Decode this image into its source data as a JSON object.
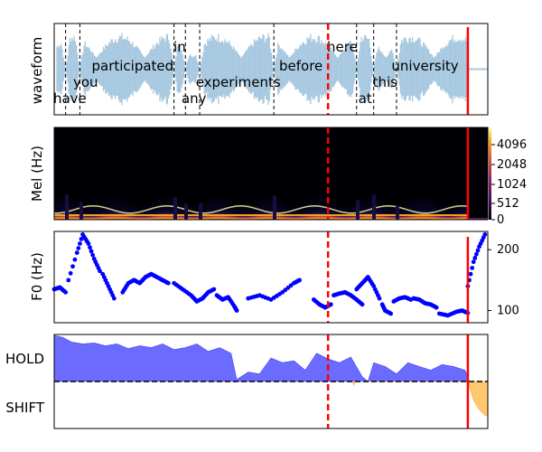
{
  "chart_data": [
    {
      "type": "area",
      "ylabel": "waveform",
      "words": [
        {
          "text": "have",
          "start": 0.02,
          "end": 0.09,
          "row": 3
        },
        {
          "text": "you",
          "start": 0.09,
          "end": 0.13,
          "row": 2
        },
        {
          "text": "participated",
          "start": 0.13,
          "end": 0.42,
          "row": 1
        },
        {
          "text": "in",
          "start": 0.42,
          "end": 0.46,
          "row": 0
        },
        {
          "text": "any",
          "start": 0.46,
          "end": 0.52,
          "row": 3
        },
        {
          "text": "experiments",
          "start": 0.52,
          "end": 0.77,
          "row": 2
        },
        {
          "text": "before",
          "start": 0.77,
          "end": 0.96,
          "row": 1
        },
        {
          "text": "here",
          "start": 0.96,
          "end": 1.06,
          "row": 0
        },
        {
          "text": "at",
          "start": 1.06,
          "end": 1.12,
          "row": 3
        },
        {
          "text": "this",
          "start": 1.12,
          "end": 1.2,
          "row": 2
        },
        {
          "text": "university",
          "start": 1.2,
          "end": 1.4,
          "row": 1
        }
      ],
      "word_boundaries": [
        0.04,
        0.09,
        0.42,
        0.46,
        0.51,
        0.77,
        1.06,
        1.12,
        1.2
      ],
      "speech_end": 1.45,
      "duration": 1.52,
      "dashed_marker": 0.96,
      "solid_marker": 1.45
    },
    {
      "type": "heatmap",
      "ylabel": "Mel (Hz)",
      "yticks": [
        "0",
        "512",
        "1024",
        "2048",
        "4096"
      ],
      "speech_end": 1.45,
      "duration": 1.52,
      "dashed_marker": 0.96,
      "solid_marker": 1.45
    },
    {
      "type": "scatter",
      "ylabel": "F0 (Hz)",
      "yticks": [
        100,
        200
      ],
      "ylim": [
        80,
        230
      ],
      "duration": 1.52,
      "dashed_marker": 0.96,
      "solid_marker": 1.45,
      "segments": [
        {
          "x": [
            0.0,
            0.02,
            0.04
          ],
          "y": [
            135,
            138,
            130
          ]
        },
        {
          "x": [
            0.05,
            0.08,
            0.1,
            0.12,
            0.14,
            0.16
          ],
          "y": [
            150,
            195,
            225,
            210,
            185,
            165
          ]
        },
        {
          "x": [
            0.17,
            0.19,
            0.21
          ],
          "y": [
            160,
            140,
            120
          ]
        },
        {
          "x": [
            0.24,
            0.26,
            0.28
          ],
          "y": [
            130,
            145,
            150
          ]
        },
        {
          "x": [
            0.28,
            0.3,
            0.32,
            0.34,
            0.36,
            0.38,
            0.4
          ],
          "y": [
            150,
            145,
            155,
            160,
            155,
            150,
            145
          ]
        },
        {
          "x": [
            0.42,
            0.45,
            0.48,
            0.5,
            0.52,
            0.54,
            0.56
          ],
          "y": [
            145,
            135,
            125,
            115,
            120,
            130,
            135
          ]
        },
        {
          "x": [
            0.57,
            0.59,
            0.61,
            0.63,
            0.64
          ],
          "y": [
            125,
            118,
            122,
            108,
            100
          ]
        },
        {
          "x": [
            0.68,
            0.72,
            0.76,
            0.8,
            0.84,
            0.86
          ],
          "y": [
            120,
            125,
            118,
            130,
            145,
            150
          ]
        },
        {
          "x": [
            0.91,
            0.93,
            0.95,
            0.97
          ],
          "y": [
            118,
            110,
            105,
            110
          ]
        },
        {
          "x": [
            0.98,
            1.0,
            1.02,
            1.04,
            1.06,
            1.08
          ],
          "y": [
            125,
            128,
            130,
            125,
            118,
            110
          ]
        },
        {
          "x": [
            1.06,
            1.08,
            1.1,
            1.12,
            1.14
          ],
          "y": [
            135,
            145,
            155,
            140,
            120
          ]
        },
        {
          "x": [
            1.15,
            1.16,
            1.18
          ],
          "y": [
            110,
            100,
            95
          ]
        },
        {
          "x": [
            1.19,
            1.21,
            1.23,
            1.25
          ],
          "y": [
            115,
            120,
            122,
            118
          ]
        },
        {
          "x": [
            1.26,
            1.28,
            1.3,
            1.32,
            1.34
          ],
          "y": [
            120,
            118,
            112,
            110,
            105
          ]
        },
        {
          "x": [
            1.35,
            1.38,
            1.41,
            1.43,
            1.45
          ],
          "y": [
            95,
            92,
            98,
            100,
            96
          ]
        },
        {
          "x": [
            1.45,
            1.47,
            1.49,
            1.51
          ],
          "y": [
            140,
            180,
            205,
            225
          ]
        }
      ]
    },
    {
      "type": "area",
      "categories": [
        "HOLD",
        "SHIFT"
      ],
      "duration": 1.52,
      "dashed_marker": 0.96,
      "solid_marker": 1.45,
      "threshold": 0.5,
      "hold_series": {
        "x": [
          0.0,
          0.03,
          0.06,
          0.1,
          0.14,
          0.18,
          0.22,
          0.26,
          0.3,
          0.34,
          0.38,
          0.42,
          0.46,
          0.5,
          0.54,
          0.58,
          0.62,
          0.64,
          0.68,
          0.72,
          0.76,
          0.8,
          0.84,
          0.88,
          0.92,
          0.96,
          1.0,
          1.04,
          1.08,
          1.1,
          1.12,
          1.16,
          1.2,
          1.24,
          1.28,
          1.32,
          1.36,
          1.4,
          1.44,
          1.45
        ],
        "y": [
          0.99,
          0.97,
          0.92,
          0.9,
          0.91,
          0.88,
          0.9,
          0.85,
          0.88,
          0.86,
          0.9,
          0.84,
          0.86,
          0.9,
          0.82,
          0.86,
          0.8,
          0.52,
          0.6,
          0.58,
          0.75,
          0.7,
          0.72,
          0.62,
          0.8,
          0.74,
          0.7,
          0.76,
          0.55,
          0.5,
          0.7,
          0.66,
          0.58,
          0.7,
          0.66,
          0.62,
          0.68,
          0.66,
          0.62,
          0.55
        ]
      },
      "shift_series": {
        "x": [
          1.045,
          1.05,
          1.055,
          1.45,
          1.47,
          1.49,
          1.51,
          1.52
        ],
        "y": [
          0.5,
          0.46,
          0.5,
          0.5,
          0.3,
          0.2,
          0.14,
          0.13
        ]
      }
    }
  ],
  "colors": {
    "wave": "#a6c8e0",
    "f0": "#0000ff",
    "hold": "#6b6bff",
    "shift": "#ffc76e",
    "marker": "#ff0000"
  }
}
